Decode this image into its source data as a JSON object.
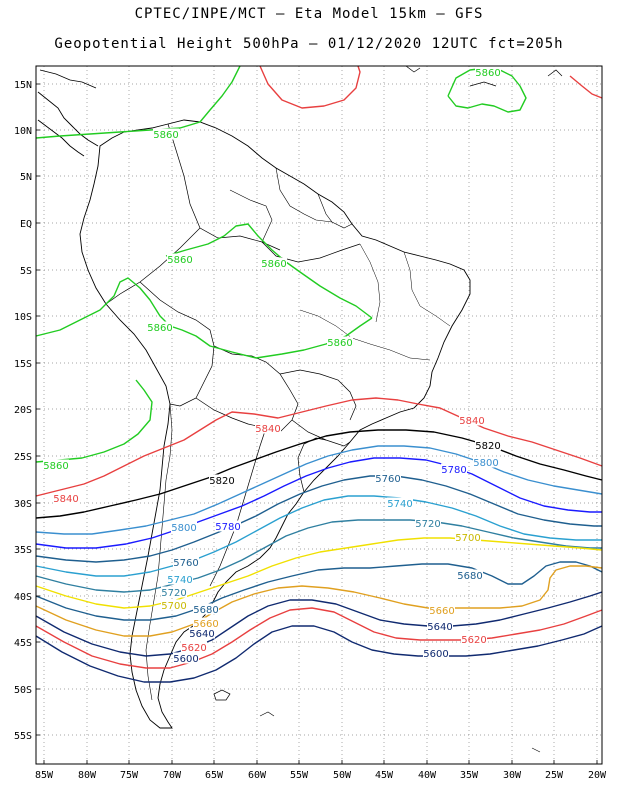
{
  "title_line1": "CPTEC/INPE/MCT –  Eta Model 15km – GFS",
  "title_line2": "Geopotential Height 500hPa – 01/12/2020 12UTC fct=205h",
  "lat_labels": [
    "15N",
    "10N",
    "5N",
    "EQ",
    "5S",
    "10S",
    "15S",
    "20S",
    "25S",
    "30S",
    "35S",
    "40S",
    "45S",
    "50S",
    "55S"
  ],
  "lon_labels": [
    "85W",
    "80W",
    "75W",
    "70W",
    "65W",
    "60W",
    "55W",
    "50W",
    "45W",
    "40W",
    "35W",
    "30W",
    "25W",
    "20W"
  ],
  "contours": [
    {
      "level": "5860",
      "color": "#22cc22"
    },
    {
      "level": "5840",
      "color": "#e84040"
    },
    {
      "level": "5820",
      "color": "#000000"
    },
    {
      "level": "5800",
      "color": "#3a8fcf"
    },
    {
      "level": "5780",
      "color": "#1a1aff"
    },
    {
      "level": "5760",
      "color": "#1f5f8f"
    },
    {
      "level": "5740",
      "color": "#2aa0d0"
    },
    {
      "level": "5720",
      "color": "#2f7fa0"
    },
    {
      "level": "5700",
      "color": "#f0e000"
    },
    {
      "level": "5680",
      "color": "#1f5f8f"
    },
    {
      "level": "5660",
      "color": "#e0a020"
    },
    {
      "level": "5640",
      "color": "#102a70"
    },
    {
      "level": "5620",
      "color": "#e84040"
    },
    {
      "level": "5600",
      "color": "#102a70"
    }
  ],
  "contour_labels": [
    {
      "text": "5860",
      "color": "#22cc22"
    },
    {
      "text": "5860",
      "color": "#22cc22"
    },
    {
      "text": "5860",
      "color": "#22cc22"
    },
    {
      "text": "5860",
      "color": "#22cc22"
    },
    {
      "text": "5860",
      "color": "#22cc22"
    },
    {
      "text": "5860",
      "color": "#22cc22"
    },
    {
      "text": "5860",
      "color": "#22cc22"
    },
    {
      "text": "5840",
      "color": "#e84040"
    },
    {
      "text": "5840",
      "color": "#e84040"
    },
    {
      "text": "5840",
      "color": "#e84040"
    },
    {
      "text": "5820",
      "color": "#000000"
    },
    {
      "text": "5820",
      "color": "#000000"
    },
    {
      "text": "5800",
      "color": "#3a8fcf"
    },
    {
      "text": "5800",
      "color": "#3a8fcf"
    },
    {
      "text": "5780",
      "color": "#1a1aff"
    },
    {
      "text": "5780",
      "color": "#1a1aff"
    },
    {
      "text": "5760",
      "color": "#1f5f8f"
    },
    {
      "text": "5760",
      "color": "#1f5f8f"
    },
    {
      "text": "5740",
      "color": "#2aa0d0"
    },
    {
      "text": "5740",
      "color": "#2aa0d0"
    },
    {
      "text": "5720",
      "color": "#2f7fa0"
    },
    {
      "text": "5720",
      "color": "#2f7fa0"
    },
    {
      "text": "5700",
      "color": "#c8b800"
    },
    {
      "text": "5700",
      "color": "#c8b800"
    },
    {
      "text": "5680",
      "color": "#1f5f8f"
    },
    {
      "text": "5680",
      "color": "#1f5f8f"
    },
    {
      "text": "5660",
      "color": "#e0a020"
    },
    {
      "text": "5660",
      "color": "#e0a020"
    },
    {
      "text": "5640",
      "color": "#102a70"
    },
    {
      "text": "5640",
      "color": "#102a70"
    },
    {
      "text": "5620",
      "color": "#e84040"
    },
    {
      "text": "5620",
      "color": "#e84040"
    },
    {
      "text": "5600",
      "color": "#102a70"
    },
    {
      "text": "5600",
      "color": "#102a70"
    }
  ]
}
